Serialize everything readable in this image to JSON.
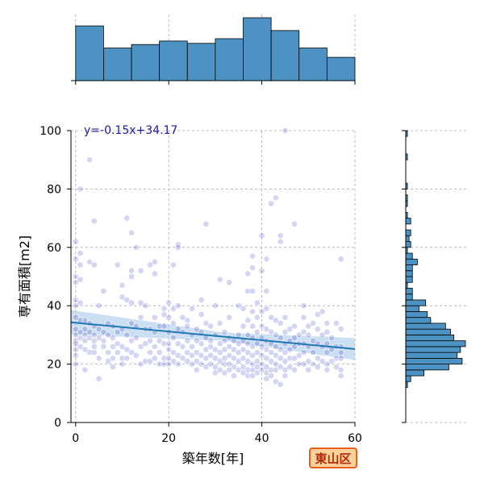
{
  "chart_data": {
    "type": "scatter",
    "xlabel": "築年数[年]",
    "ylabel": "専有面積[m2]",
    "xlim": [
      -1,
      60
    ],
    "ylim": [
      0,
      100
    ],
    "xticks": [
      0,
      20,
      40,
      60
    ],
    "yticks": [
      0,
      20,
      40,
      60,
      80,
      100
    ],
    "grid": true,
    "regression": {
      "slope": -0.15,
      "intercept": 34.17,
      "label": "y=-0.15x+34.17"
    },
    "area_badge": "東山区",
    "colors": {
      "points": "#3a3ac8",
      "fit_line": "#1f77b4",
      "ci_band": "#9ec5e6",
      "hist_bar": "#4c92c3"
    },
    "points": [
      [
        0,
        62
      ],
      [
        0,
        56
      ],
      [
        0,
        50
      ],
      [
        0,
        48
      ],
      [
        0,
        42
      ],
      [
        0,
        40
      ],
      [
        0,
        36
      ],
      [
        0,
        32
      ],
      [
        0,
        30
      ],
      [
        0,
        28
      ],
      [
        0,
        27
      ],
      [
        0,
        25
      ],
      [
        0,
        23
      ],
      [
        0,
        20
      ],
      [
        1,
        80
      ],
      [
        1,
        58
      ],
      [
        1,
        54
      ],
      [
        1,
        49
      ],
      [
        1,
        41
      ],
      [
        1,
        35
      ],
      [
        1,
        31
      ],
      [
        1,
        29
      ],
      [
        1,
        26
      ],
      [
        2,
        35
      ],
      [
        2,
        32
      ],
      [
        2,
        30
      ],
      [
        2,
        28
      ],
      [
        2,
        25
      ],
      [
        2,
        18
      ],
      [
        3,
        90
      ],
      [
        3,
        55
      ],
      [
        3,
        34
      ],
      [
        3,
        31
      ],
      [
        3,
        29
      ],
      [
        3,
        24
      ],
      [
        4,
        69
      ],
      [
        4,
        54
      ],
      [
        4,
        33
      ],
      [
        4,
        30
      ],
      [
        4,
        28
      ],
      [
        4,
        26
      ],
      [
        4,
        24
      ],
      [
        5,
        40
      ],
      [
        5,
        32
      ],
      [
        5,
        29
      ],
      [
        5,
        22
      ],
      [
        5,
        15
      ],
      [
        6,
        45
      ],
      [
        6,
        31
      ],
      [
        6,
        28
      ],
      [
        6,
        26
      ],
      [
        7,
        34
      ],
      [
        7,
        30
      ],
      [
        7,
        24
      ],
      [
        7,
        21
      ],
      [
        8,
        33
      ],
      [
        8,
        29
      ],
      [
        8,
        26
      ],
      [
        8,
        22
      ],
      [
        8,
        19
      ],
      [
        9,
        54
      ],
      [
        9,
        31
      ],
      [
        9,
        27
      ],
      [
        9,
        24
      ],
      [
        10,
        47
      ],
      [
        10,
        43
      ],
      [
        10,
        32
      ],
      [
        10,
        26
      ],
      [
        10,
        22
      ],
      [
        10,
        20
      ],
      [
        11,
        70
      ],
      [
        11,
        42
      ],
      [
        11,
        30
      ],
      [
        11,
        25
      ],
      [
        11,
        22
      ],
      [
        12,
        65
      ],
      [
        12,
        52
      ],
      [
        12,
        50
      ],
      [
        12,
        41
      ],
      [
        12,
        34
      ],
      [
        12,
        28
      ],
      [
        12,
        24
      ],
      [
        13,
        60
      ],
      [
        13,
        33
      ],
      [
        13,
        29
      ],
      [
        13,
        23
      ],
      [
        14,
        52
      ],
      [
        14,
        41
      ],
      [
        14,
        36
      ],
      [
        14,
        26
      ],
      [
        14,
        20
      ],
      [
        15,
        40
      ],
      [
        15,
        32
      ],
      [
        15,
        27
      ],
      [
        15,
        21
      ],
      [
        16,
        54
      ],
      [
        16,
        32
      ],
      [
        16,
        28
      ],
      [
        16,
        24
      ],
      [
        16,
        21
      ],
      [
        17,
        55
      ],
      [
        17,
        51
      ],
      [
        17,
        36
      ],
      [
        17,
        31
      ],
      [
        17,
        26
      ],
      [
        17,
        22
      ],
      [
        18,
        33
      ],
      [
        18,
        28
      ],
      [
        18,
        24
      ],
      [
        18,
        20
      ],
      [
        19,
        39
      ],
      [
        19,
        37
      ],
      [
        19,
        33
      ],
      [
        19,
        27
      ],
      [
        19,
        22
      ],
      [
        19,
        20
      ],
      [
        20,
        41
      ],
      [
        20,
        36
      ],
      [
        20,
        31
      ],
      [
        20,
        27
      ],
      [
        20,
        25
      ],
      [
        20,
        22
      ],
      [
        20,
        20
      ],
      [
        21,
        54
      ],
      [
        21,
        39
      ],
      [
        21,
        34
      ],
      [
        21,
        29
      ],
      [
        21,
        24
      ],
      [
        21,
        21
      ],
      [
        22,
        61
      ],
      [
        22,
        60
      ],
      [
        22,
        40
      ],
      [
        22,
        32
      ],
      [
        22,
        27
      ],
      [
        22,
        23
      ],
      [
        22,
        20
      ],
      [
        23,
        36
      ],
      [
        23,
        31
      ],
      [
        23,
        26
      ],
      [
        23,
        22
      ],
      [
        24,
        35
      ],
      [
        24,
        33
      ],
      [
        24,
        28
      ],
      [
        24,
        24
      ],
      [
        24,
        21
      ],
      [
        25,
        39
      ],
      [
        25,
        30
      ],
      [
        25,
        26
      ],
      [
        25,
        23
      ],
      [
        25,
        20
      ],
      [
        26,
        32
      ],
      [
        26,
        28
      ],
      [
        26,
        24
      ],
      [
        26,
        21
      ],
      [
        26,
        18
      ],
      [
        27,
        42
      ],
      [
        27,
        37
      ],
      [
        27,
        31
      ],
      [
        27,
        27
      ],
      [
        27,
        23
      ],
      [
        27,
        20
      ],
      [
        28,
        68
      ],
      [
        28,
        34
      ],
      [
        28,
        29
      ],
      [
        28,
        25
      ],
      [
        28,
        22
      ],
      [
        28,
        19
      ],
      [
        29,
        33
      ],
      [
        29,
        28
      ],
      [
        29,
        26
      ],
      [
        29,
        23
      ],
      [
        29,
        20
      ],
      [
        30,
        40
      ],
      [
        30,
        30
      ],
      [
        30,
        25
      ],
      [
        30,
        22
      ],
      [
        30,
        19
      ],
      [
        30,
        17
      ],
      [
        31,
        49
      ],
      [
        31,
        34
      ],
      [
        31,
        27
      ],
      [
        31,
        24
      ],
      [
        31,
        21
      ],
      [
        31,
        18
      ],
      [
        32,
        31
      ],
      [
        32,
        28
      ],
      [
        32,
        25
      ],
      [
        32,
        22
      ],
      [
        32,
        20
      ],
      [
        32,
        17
      ],
      [
        33,
        48
      ],
      [
        33,
        36
      ],
      [
        33,
        29
      ],
      [
        33,
        26
      ],
      [
        33,
        23
      ],
      [
        33,
        20
      ],
      [
        33,
        18
      ],
      [
        34,
        28
      ],
      [
        34,
        25
      ],
      [
        34,
        22
      ],
      [
        34,
        19
      ],
      [
        34,
        16
      ],
      [
        35,
        40
      ],
      [
        35,
        30
      ],
      [
        35,
        27
      ],
      [
        35,
        24
      ],
      [
        35,
        21
      ],
      [
        35,
        18
      ],
      [
        36,
        39
      ],
      [
        36,
        33
      ],
      [
        36,
        28
      ],
      [
        36,
        25
      ],
      [
        36,
        22
      ],
      [
        36,
        19
      ],
      [
        36,
        17
      ],
      [
        37,
        51
      ],
      [
        37,
        45
      ],
      [
        37,
        35
      ],
      [
        37,
        30
      ],
      [
        37,
        27
      ],
      [
        37,
        24
      ],
      [
        37,
        21
      ],
      [
        37,
        18
      ],
      [
        37,
        16
      ],
      [
        38,
        57
      ],
      [
        38,
        53
      ],
      [
        38,
        45
      ],
      [
        38,
        38
      ],
      [
        38,
        33
      ],
      [
        38,
        29
      ],
      [
        38,
        26
      ],
      [
        38,
        23
      ],
      [
        38,
        20
      ],
      [
        38,
        18
      ],
      [
        38,
        16
      ],
      [
        39,
        41
      ],
      [
        39,
        36
      ],
      [
        39,
        31
      ],
      [
        39,
        27
      ],
      [
        39,
        24
      ],
      [
        39,
        21
      ],
      [
        39,
        19
      ],
      [
        39,
        17
      ],
      [
        40,
        64
      ],
      [
        40,
        52
      ],
      [
        40,
        38
      ],
      [
        40,
        33
      ],
      [
        40,
        29
      ],
      [
        40,
        26
      ],
      [
        40,
        23
      ],
      [
        40,
        20
      ],
      [
        40,
        18
      ],
      [
        41,
        56
      ],
      [
        41,
        45
      ],
      [
        41,
        39
      ],
      [
        41,
        32
      ],
      [
        41,
        28
      ],
      [
        41,
        25
      ],
      [
        41,
        22
      ],
      [
        41,
        19
      ],
      [
        41,
        17
      ],
      [
        41,
        15
      ],
      [
        42,
        75
      ],
      [
        42,
        36
      ],
      [
        42,
        31
      ],
      [
        42,
        27
      ],
      [
        42,
        24
      ],
      [
        42,
        21
      ],
      [
        42,
        18
      ],
      [
        42,
        16
      ],
      [
        43,
        77
      ],
      [
        43,
        35
      ],
      [
        43,
        30
      ],
      [
        43,
        26
      ],
      [
        43,
        23
      ],
      [
        43,
        20
      ],
      [
        43,
        18
      ],
      [
        43,
        14
      ],
      [
        44,
        64
      ],
      [
        44,
        62
      ],
      [
        44,
        34
      ],
      [
        44,
        29
      ],
      [
        44,
        25
      ],
      [
        44,
        22
      ],
      [
        44,
        19
      ],
      [
        44,
        13
      ],
      [
        45,
        100
      ],
      [
        45,
        36
      ],
      [
        45,
        31
      ],
      [
        45,
        27
      ],
      [
        45,
        24
      ],
      [
        45,
        21
      ],
      [
        45,
        18
      ],
      [
        45,
        16
      ],
      [
        46,
        32
      ],
      [
        46,
        28
      ],
      [
        46,
        25
      ],
      [
        46,
        22
      ],
      [
        46,
        19
      ],
      [
        47,
        68
      ],
      [
        47,
        33
      ],
      [
        47,
        29
      ],
      [
        47,
        26
      ],
      [
        47,
        22
      ],
      [
        47,
        18
      ],
      [
        48,
        30
      ],
      [
        48,
        27
      ],
      [
        48,
        23
      ],
      [
        48,
        20
      ],
      [
        49,
        40
      ],
      [
        49,
        36
      ],
      [
        49,
        31
      ],
      [
        49,
        27
      ],
      [
        49,
        24
      ],
      [
        49,
        20
      ],
      [
        50,
        33
      ],
      [
        50,
        30
      ],
      [
        50,
        26
      ],
      [
        50,
        21
      ],
      [
        50,
        18
      ],
      [
        51,
        34
      ],
      [
        51,
        28
      ],
      [
        51,
        24
      ],
      [
        51,
        20
      ],
      [
        52,
        37
      ],
      [
        52,
        32
      ],
      [
        52,
        27
      ],
      [
        52,
        22
      ],
      [
        52,
        19
      ],
      [
        53,
        38
      ],
      [
        53,
        30
      ],
      [
        53,
        26
      ],
      [
        53,
        21
      ],
      [
        54,
        34
      ],
      [
        54,
        31
      ],
      [
        54,
        27
      ],
      [
        54,
        24
      ],
      [
        54,
        20
      ],
      [
        54,
        18
      ],
      [
        55,
        29
      ],
      [
        55,
        25
      ],
      [
        55,
        21
      ],
      [
        56,
        34
      ],
      [
        56,
        26
      ],
      [
        56,
        22
      ],
      [
        56,
        19
      ],
      [
        57,
        56
      ],
      [
        57,
        32
      ],
      [
        57,
        26
      ],
      [
        57,
        24
      ],
      [
        57,
        22
      ],
      [
        57,
        18
      ],
      [
        57,
        16
      ]
    ]
  }
}
